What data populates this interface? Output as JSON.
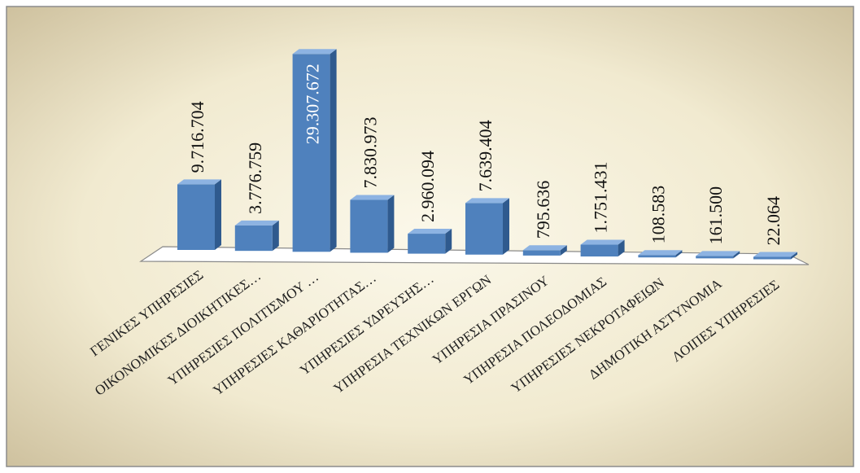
{
  "chart_data": {
    "type": "bar",
    "categories": [
      "ΓΕΝΙΚΕΣ ΥΠΗΡΕΣΙΕΣ",
      "ΟΙΚΟΝΟΜΙΚΕΣ ΔΙΟΙΚΗΤΙΚΕΣ…",
      "ΥΠΗΡΕΣΙΕΣ ΠΟΛΙΤΙΣΜΟΥ …",
      "ΥΠΗΡΕΣΙΕΣ ΚΑΘΑΡΙΟΤΗΤΑΣ…",
      "ΥΠΗΡΕΣΙΕΣ ΥΔΡΕΥΣΗΣ…",
      "ΥΠΗΡΕΣΙΑ ΤΕΧΝΙΚΩΝ ΕΡΓΩΝ",
      "ΥΠΗΡΕΣΙΑ ΠΡΑΣΙΝΟΥ",
      "ΥΠΗΡΕΣΙΑ ΠΟΛΕΟΔΟΜΙΑΣ",
      "ΥΠΗΡΕΣΙΕΣ ΝΕΚΡΟΤΑΦΕΙΩΝ",
      "ΔΗΜΟΤΙΚΗ ΑΣΤΥΝΟΜΙΑ",
      "ΛΟΙΠΕΣ ΥΠΗΡΕΣΙΕΣ"
    ],
    "values": [
      9716704,
      3776759,
      29307672,
      7830973,
      2960094,
      7639404,
      795636,
      1751431,
      108583,
      161500,
      22064
    ],
    "value_labels": [
      "9.716.704",
      "3.776.759",
      "29.307.672",
      "7.830.973",
      "2.960.094",
      "7.639.404",
      "795.636",
      "1.751.431",
      "108.583",
      "161.500",
      "22.064"
    ],
    "title": "",
    "xlabel": "",
    "ylabel": "",
    "ylim": [
      0,
      30000000
    ],
    "grid": false,
    "legend": "none",
    "style": "3d-column"
  },
  "colors": {
    "bar_front": "#4f81bd",
    "bar_side": "#2f5a8e",
    "bar_top": "#8db3e2",
    "background_center": "#fbf8ea",
    "background_edge": "#c9bb97",
    "floor": "#ffffff"
  }
}
